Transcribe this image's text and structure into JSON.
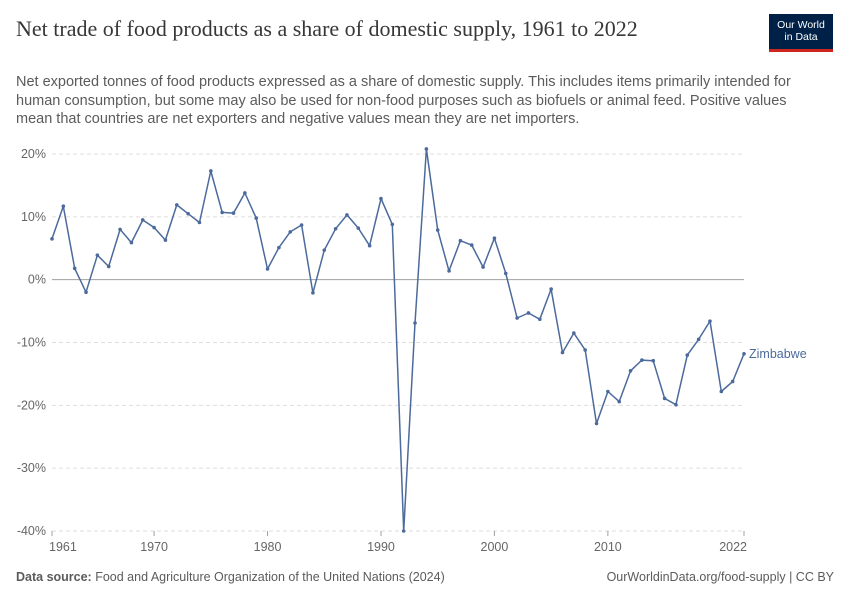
{
  "header": {
    "title": "Net trade of food products as a share of domestic supply, 1961 to 2022",
    "subtitle": "Net exported tonnes of food products expressed as a share of domestic supply. This includes items primarily intended for human consumption, but some may also be used for non-food purposes such as biofuels or animal feed. Positive values mean that countries are net exporters and negative values mean they are net importers."
  },
  "logo": {
    "line1": "Our World",
    "line2": "in Data"
  },
  "footer": {
    "source_label": "Data source:",
    "source_text": "Food and Agriculture Organization of the United Nations (2024)",
    "credit": "OurWorldinData.org/food-supply | CC BY"
  },
  "colors": {
    "series": "#4c6a9c",
    "grid": "#dddddd",
    "zero": "#a1a1a1",
    "text": "#666666"
  },
  "chart_data": {
    "type": "line",
    "title": "Net trade of food products as a share of domestic supply, 1961 to 2022",
    "xlabel": "",
    "ylabel": "",
    "xlim": [
      1961,
      2022
    ],
    "ylim": [
      -40,
      20
    ],
    "y_ticks": [
      20,
      10,
      0,
      -10,
      -20,
      -30,
      -40
    ],
    "y_tick_labels": [
      "20%",
      "10%",
      "0%",
      "-10%",
      "-20%",
      "-30%",
      "-40%"
    ],
    "x_ticks": [
      1961,
      1970,
      1980,
      1990,
      2000,
      2010,
      2022
    ],
    "x_tick_labels": [
      "1961",
      "1970",
      "1980",
      "1990",
      "2000",
      "2010",
      "2022"
    ],
    "grid": "horizontal dashed",
    "series": [
      {
        "name": "Zimbabwe",
        "x": [
          1961,
          1962,
          1963,
          1964,
          1965,
          1966,
          1967,
          1968,
          1969,
          1970,
          1971,
          1972,
          1973,
          1974,
          1975,
          1976,
          1977,
          1978,
          1979,
          1980,
          1981,
          1982,
          1983,
          1984,
          1985,
          1986,
          1987,
          1988,
          1989,
          1990,
          1991,
          1992,
          1993,
          1994,
          1995,
          1996,
          1997,
          1998,
          1999,
          2000,
          2001,
          2002,
          2003,
          2004,
          2005,
          2006,
          2007,
          2008,
          2009,
          2010,
          2011,
          2012,
          2013,
          2014,
          2015,
          2016,
          2017,
          2018,
          2019,
          2020,
          2021,
          2022
        ],
        "values": [
          6.5,
          11.7,
          1.8,
          -2.0,
          3.9,
          2.1,
          8.0,
          5.9,
          9.5,
          8.3,
          6.3,
          11.9,
          10.5,
          9.1,
          17.3,
          10.7,
          10.6,
          13.8,
          9.8,
          1.7,
          5.1,
          7.6,
          8.7,
          -2.1,
          4.7,
          8.1,
          10.3,
          8.2,
          5.4,
          12.9,
          8.8,
          -40.0,
          -6.9,
          20.8,
          7.9,
          1.4,
          6.2,
          5.5,
          2.0,
          6.6,
          1.0,
          -6.1,
          -5.3,
          -6.3,
          -1.5,
          -11.6,
          -8.5,
          -11.2,
          -22.9,
          -17.8,
          -19.4,
          -14.5,
          -12.8,
          -12.9,
          -18.9,
          -19.9,
          -12.0,
          -9.5,
          -6.6,
          -17.8,
          -16.2,
          -11.8
        ]
      }
    ]
  }
}
